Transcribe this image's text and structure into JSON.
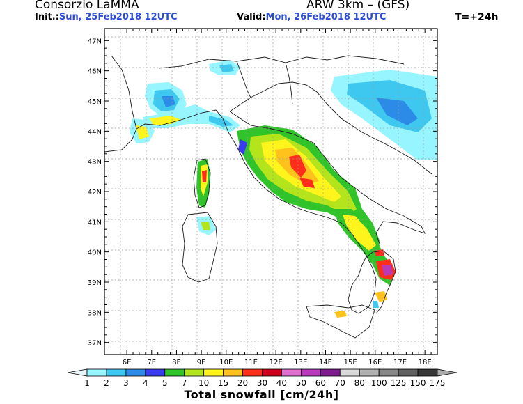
{
  "header": {
    "title": "Consorzio LaMMA",
    "model": "ARW 3km – (GFS)",
    "init_label": "Init.:",
    "init_value": "Sun, 25Feb2018  12UTC",
    "valid_label": "Valid:",
    "valid_value": "Mon, 26Feb2018  12UTC",
    "step": "T=+24h"
  },
  "map": {
    "lat_labels": [
      "47N",
      "46N",
      "45N",
      "44N",
      "43N",
      "42N",
      "41N",
      "40N",
      "39N",
      "38N",
      "37N"
    ],
    "lon_labels": [
      "6E",
      "7E",
      "8E",
      "9E",
      "10E",
      "11E",
      "12E",
      "13E",
      "14E",
      "15E",
      "16E",
      "17E",
      "18E"
    ],
    "lat_range": [
      36.6,
      47.4
    ],
    "lon_range": [
      5.1,
      18.5
    ]
  },
  "legend": {
    "title": "Total snowfall [cm/24h]",
    "ticks": [
      "1",
      "2",
      "3",
      "4",
      "5",
      "7",
      "10",
      "15",
      "20",
      "30",
      "40",
      "50",
      "60",
      "70",
      "80",
      "100",
      "125",
      "150",
      "175"
    ],
    "colors": [
      "#96f5ff",
      "#3ec8f0",
      "#2b8be6",
      "#3a3af0",
      "#30c42a",
      "#b4e51c",
      "#fff41c",
      "#ffc11c",
      "#ff2d1c",
      "#d0001c",
      "#e070d0",
      "#b83ab8",
      "#7c1c8c",
      "#d8d8d8",
      "#b0b0b0",
      "#888888",
      "#606060",
      "#363636"
    ],
    "under_color": "#e8f4f8",
    "over_color": "#aaaaaa"
  }
}
